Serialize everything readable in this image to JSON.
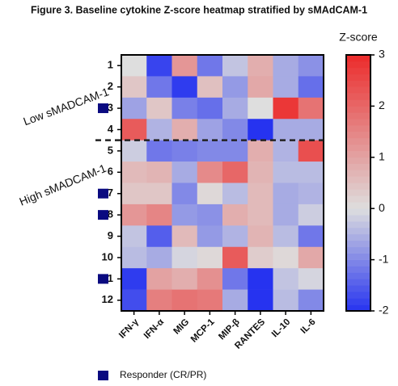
{
  "chart_data": {
    "type": "heatmap",
    "title": "Figure 3. Baseline cytokine Z-score heatmap stratified by sMAdCAM-1",
    "colorbar_label": "Z-score",
    "group_labels": [
      "Low sMADCAM-1",
      "High sMADCAM-1"
    ],
    "rows": [
      "1",
      "2",
      "3",
      "4",
      "5",
      "6",
      "7",
      "8",
      "9",
      "10",
      "11",
      "12"
    ],
    "columns": [
      "IFN-γ",
      "IFN-α",
      "MIG",
      "MCP-1",
      "MIP-β",
      "RANTES",
      "IL-10",
      "IL-6"
    ],
    "values": [
      [
        0.0,
        -1.8,
        1.2,
        -1.2,
        -0.3,
        0.8,
        -0.6,
        -0.9
      ],
      [
        0.4,
        -1.2,
        -1.9,
        0.5,
        -0.8,
        0.9,
        -0.6,
        -1.3
      ],
      [
        -0.7,
        0.4,
        -1.1,
        -1.3,
        -0.6,
        0.0,
        2.8,
        1.8
      ],
      [
        2.2,
        -0.5,
        0.8,
        -0.7,
        -1.0,
        -2.0,
        -0.6,
        -0.6
      ],
      [
        -0.2,
        -1.2,
        -1.1,
        -1.0,
        -1.0,
        0.8,
        -0.5,
        2.4
      ],
      [
        0.6,
        0.7,
        -0.6,
        1.4,
        2.0,
        0.7,
        -0.4,
        -0.4
      ],
      [
        0.4,
        0.4,
        -1.0,
        0.1,
        -0.4,
        0.6,
        -0.6,
        -0.5
      ],
      [
        1.2,
        1.5,
        -0.8,
        -0.9,
        0.8,
        0.6,
        -0.6,
        -0.2
      ],
      [
        -0.3,
        -1.5,
        0.6,
        -0.8,
        -0.5,
        0.7,
        -0.4,
        -1.2
      ],
      [
        -0.4,
        -0.6,
        -0.1,
        0.1,
        2.2,
        0.3,
        0.1,
        0.9
      ],
      [
        -1.9,
        1.0,
        0.8,
        1.3,
        -1.2,
        -2.0,
        -0.3,
        -0.1
      ],
      [
        -1.7,
        1.6,
        1.8,
        1.7,
        -0.6,
        -2.0,
        -0.4,
        -1.0
      ]
    ],
    "zlim": [
      -2,
      3
    ],
    "zticks": [
      3,
      2,
      1,
      0,
      -1,
      -2
    ],
    "colors": [
      "#2633f0",
      "#dedede",
      "#ec2b2b"
    ],
    "responder_rows": [
      3,
      7,
      8,
      11
    ],
    "responder_color": "#0a0a80",
    "legend": "Responder (CR/PR)"
  }
}
